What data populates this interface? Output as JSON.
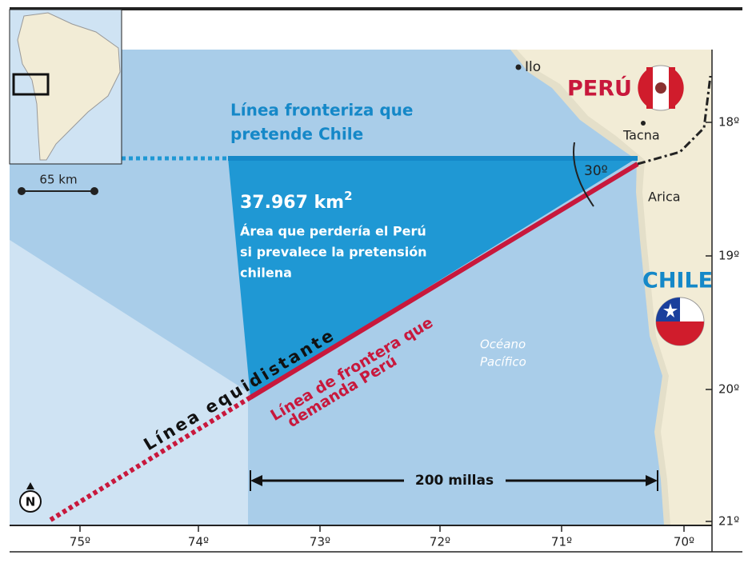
{
  "map": {
    "places": [
      "Ilo",
      "Tacna",
      "Arica"
    ],
    "countries": [
      "PERÚ",
      "CHILE"
    ],
    "angle": "30º",
    "scale": "65 km",
    "chile_line": [
      "Línea fronteriza que",
      "pretende Chile"
    ],
    "area": {
      "value": "37.967 km",
      "sup": "2",
      "lines": [
        "Área que perdería el Perú",
        "si prevalece la pretensión",
        "chilena"
      ]
    },
    "equidistant": "Línea equidistante",
    "peru_line": [
      "Línea de frontera que",
      "demanda Perú"
    ],
    "ocean": [
      "Océano",
      "Pacífico"
    ],
    "distance": "200 millas",
    "north": "N",
    "latitudes": [
      "18º",
      "19º",
      "20º",
      "21º"
    ],
    "longitudes": [
      "75º",
      "74º",
      "73º",
      "72º",
      "71º",
      "70º"
    ]
  }
}
